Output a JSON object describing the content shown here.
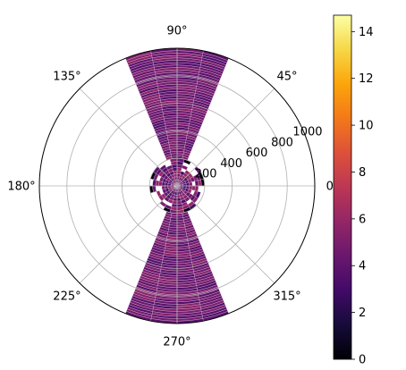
{
  "chart_data": {
    "type": "heatmap",
    "projection": "polar",
    "title": "",
    "angle_ticks": [
      {
        "deg": 0,
        "label": "0°"
      },
      {
        "deg": 45,
        "label": "45°"
      },
      {
        "deg": 90,
        "label": "90°"
      },
      {
        "deg": 135,
        "label": "135°"
      },
      {
        "deg": 180,
        "label": "180°"
      },
      {
        "deg": 225,
        "label": "225°"
      },
      {
        "deg": 270,
        "label": "270°"
      },
      {
        "deg": 315,
        "label": "315°"
      }
    ],
    "radial_ticks": [
      {
        "value": 200,
        "label": "200"
      },
      {
        "value": 400,
        "label": "400"
      },
      {
        "value": 600,
        "label": "600"
      },
      {
        "value": 800,
        "label": "800"
      },
      {
        "value": 1000,
        "label": "1000"
      }
    ],
    "rlim": [
      0,
      1000
    ],
    "grid": true,
    "colormap": "inferno",
    "colorbar": {
      "location": "right",
      "range": [
        0,
        14.7
      ],
      "ticks": [
        {
          "value": 0,
          "label": "0"
        },
        {
          "value": 2,
          "label": "2"
        },
        {
          "value": 4,
          "label": "4"
        },
        {
          "value": 6,
          "label": "6"
        },
        {
          "value": 8,
          "label": "8"
        },
        {
          "value": 10,
          "label": "10"
        },
        {
          "value": 12,
          "label": "12"
        },
        {
          "value": 14,
          "label": "14"
        }
      ]
    },
    "wedges": [
      {
        "theta_deg": [
          68,
          112
        ],
        "r": [
          0,
          1000
        ],
        "typical_value": 4.5
      },
      {
        "theta_deg": [
          248,
          292
        ],
        "r": [
          0,
          1000
        ],
        "typical_value": 4.5
      },
      {
        "theta_deg": [
          0,
          360
        ],
        "r": [
          0,
          200
        ],
        "typical_value": 4.5
      }
    ],
    "peak_value": 14.7
  }
}
